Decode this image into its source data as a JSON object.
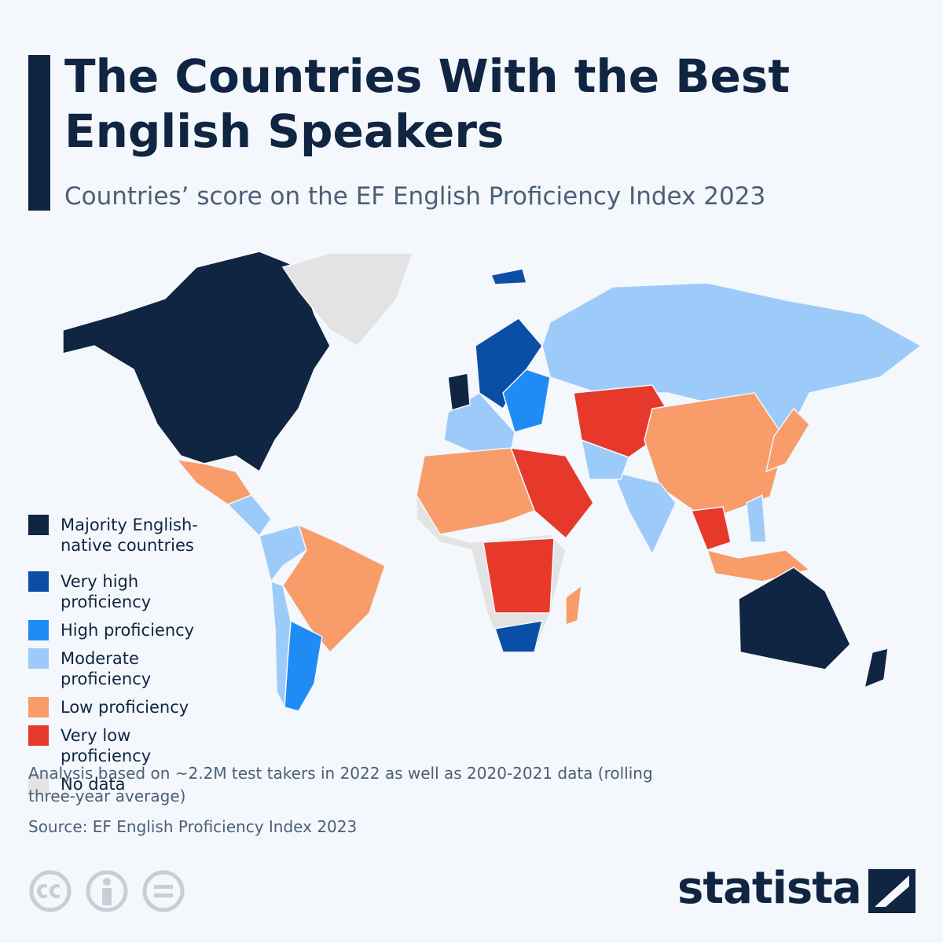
{
  "header": {
    "title": "The Countries With the Best English Speakers",
    "subtitle": "Countries’ score on the EF English Proficiency Index 2023"
  },
  "legend": {
    "items": [
      {
        "label": "Majority English-native countries",
        "color": "#0f2542"
      },
      {
        "label": "Very high proficiency",
        "color": "#0b4ea6"
      },
      {
        "label": "High proficiency",
        "color": "#1e8cf4"
      },
      {
        "label": "Moderate proficiency",
        "color": "#9ccbfa"
      },
      {
        "label": "Low proficiency",
        "color": "#f89c6a"
      },
      {
        "label": "Very low proficiency",
        "color": "#e6392b"
      },
      {
        "label": "No data",
        "color": "#e3e3e3"
      }
    ]
  },
  "footer": {
    "note": "Analysis based on ~2.2M test takers in 2022 as well as 2020-2021 data (rolling three-year average)",
    "source": "Source: EF English Proficiency Index 2023",
    "brand": "statista"
  }
}
